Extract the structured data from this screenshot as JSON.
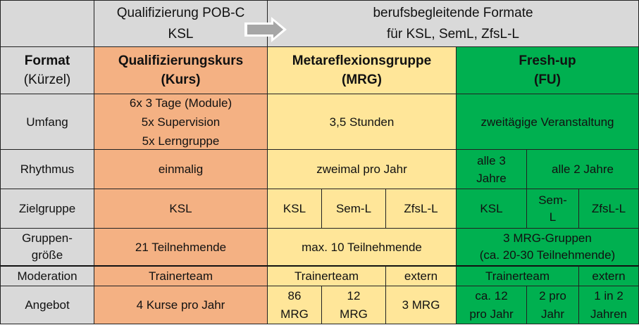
{
  "header": {
    "left_group": "Qualifizierung POB-C\nKSL",
    "right_group": "berufsbegleitende Formate\nfür KSL, SemL, ZfsL-L",
    "arrow_icon": "right-arrow"
  },
  "colors": {
    "gray": "#d9d9d9",
    "kurs": "#f4b183",
    "mrg": "#ffe699",
    "fu": "#00b050"
  },
  "format_row": {
    "label_bold": "Format",
    "label_sub": "(Kürzel)",
    "kurs_title": "Qualifizierungskurs",
    "kurs_abbr": "(Kurs)",
    "mrg_title": "Metareflexionsgruppe",
    "mrg_abbr": "(MRG)",
    "fu_title": "Fresh-up",
    "fu_abbr": "(FU)"
  },
  "rows": {
    "umfang": {
      "label": "Umfang",
      "kurs": "6x 3 Tage (Module)\n5x Supervision\n5x Lerngruppe",
      "mrg": "3,5 Stunden",
      "fu": "zweitägige Veranstaltung"
    },
    "rhythmus": {
      "label": "Rhythmus",
      "kurs": "einmalig",
      "mrg": "zweimal pro Jahr",
      "fu_ksl": "alle 3\nJahre",
      "fu_rest": "alle 2 Jahre"
    },
    "zielgruppe": {
      "label": "Zielgruppe",
      "kurs": "KSL",
      "mrg": [
        "KSL",
        "Sem-L",
        "ZfsL-L"
      ],
      "fu": [
        "KSL",
        "Sem-\nL",
        "ZfsL-L"
      ]
    },
    "gruppengroesse": {
      "label": "Gruppen-\ngröße",
      "kurs": "21 Teilnehmende",
      "mrg": "max. 10 Teilnehmende",
      "fu": "3 MRG-Gruppen\n(ca. 20-30 Teilnehmende)"
    },
    "moderation": {
      "label": "Moderation",
      "kurs": "Trainerteam",
      "mrg_team": "Trainerteam",
      "mrg_ext": "extern",
      "fu_team": "Trainerteam",
      "fu_ext": "extern"
    },
    "angebot": {
      "label": "Angebot",
      "kurs": "4 Kurse pro Jahr",
      "mrg": [
        "86\nMRG",
        "12\nMRG",
        "3 MRG"
      ],
      "fu": [
        "ca. 12\npro Jahr",
        "2 pro\nJahr",
        "1 in 2\nJahren"
      ]
    }
  }
}
